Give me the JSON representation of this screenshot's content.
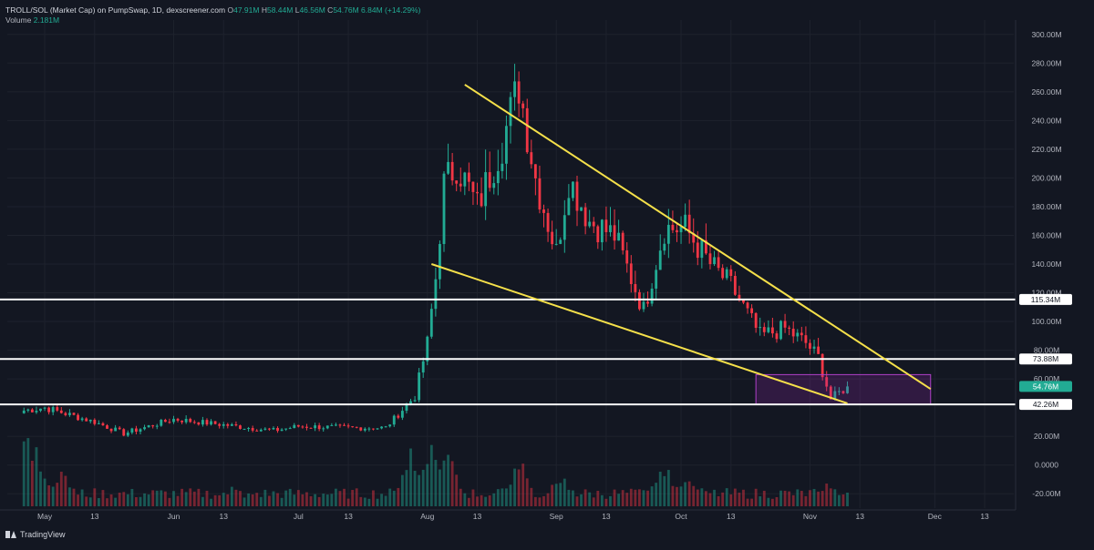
{
  "header": {
    "symbol": "TROLL/SOL (Market Cap) on PumpSwap, 1D, dexscreener.com",
    "open_label": "O",
    "open": "47.91M",
    "high_label": "H",
    "high": "58.44M",
    "low_label": "L",
    "low": "46.56M",
    "close_label": "C",
    "close": "54.76M",
    "change": "6.84M (+14.29%)",
    "volume_label": "Volume",
    "volume": "2.181M"
  },
  "brand": "TradingView",
  "colors": {
    "background": "#131722",
    "up": "#22ab94",
    "down": "#f23645",
    "trendline": "#f5e04a",
    "level": "#ffffff",
    "zone": "#9c27b0",
    "grid": "#1e222d"
  },
  "chart_data": {
    "type": "candlestick",
    "ylim": [
      -30,
      310
    ],
    "y_unit": "M",
    "yticks": [
      "300.00M",
      "280.00M",
      "260.00M",
      "240.00M",
      "220.00M",
      "200.00M",
      "180.00M",
      "160.00M",
      "140.00M",
      "120.00M",
      "100.00M",
      "80.00M",
      "60.00M",
      "20.00M",
      "0.0000",
      "-20.00M"
    ],
    "ytick_values": [
      300,
      280,
      260,
      240,
      220,
      200,
      180,
      160,
      140,
      120,
      100,
      80,
      60,
      20,
      0,
      -20
    ],
    "xticks": [
      {
        "label": "May",
        "x": "2025-05-01"
      },
      {
        "label": "13",
        "x": "2025-05-13"
      },
      {
        "label": "Jun",
        "x": "2025-06-01"
      },
      {
        "label": "13",
        "x": "2025-06-13"
      },
      {
        "label": "Jul",
        "x": "2025-07-01"
      },
      {
        "label": "13",
        "x": "2025-07-13"
      },
      {
        "label": "Aug",
        "x": "2025-08-01"
      },
      {
        "label": "13",
        "x": "2025-08-13"
      },
      {
        "label": "Sep",
        "x": "2025-09-01"
      },
      {
        "label": "13",
        "x": "2025-09-13"
      },
      {
        "label": "Oct",
        "x": "2025-10-01"
      },
      {
        "label": "13",
        "x": "2025-10-13"
      },
      {
        "label": "Nov",
        "x": "2025-11-01"
      },
      {
        "label": "13",
        "x": "2025-11-13"
      },
      {
        "label": "Dec",
        "x": "2025-12-01"
      },
      {
        "label": "13",
        "x": "2025-12-13"
      }
    ],
    "xlim": [
      "2025-04-22",
      "2025-12-20"
    ],
    "levels": [
      {
        "value": 115.34,
        "label": "115.34M"
      },
      {
        "value": 73.88,
        "label": "73.88M"
      },
      {
        "value": 42.26,
        "label": "42.26M"
      }
    ],
    "last_price": {
      "value": 54.76,
      "label": "54.76M"
    },
    "trendlines": [
      {
        "from": {
          "x": "2025-08-10",
          "y": 265
        },
        "to": {
          "x": "2025-11-30",
          "y": 53
        }
      },
      {
        "from": {
          "x": "2025-08-02",
          "y": 140
        },
        "to": {
          "x": "2025-11-10",
          "y": 43
        }
      }
    ],
    "zone": {
      "x_start": "2025-10-19",
      "x_end": "2025-11-30",
      "y_low": 42.26,
      "y_high": 63
    },
    "key_closes": [
      {
        "x": "2025-04-26",
        "close": 38
      },
      {
        "x": "2025-05-01",
        "close": 40
      },
      {
        "x": "2025-05-13",
        "close": 30
      },
      {
        "x": "2025-05-20",
        "close": 22
      },
      {
        "x": "2025-06-01",
        "close": 32
      },
      {
        "x": "2025-06-13",
        "close": 28
      },
      {
        "x": "2025-06-25",
        "close": 24
      },
      {
        "x": "2025-07-01",
        "close": 27
      },
      {
        "x": "2025-07-13",
        "close": 26
      },
      {
        "x": "2025-07-22",
        "close": 26
      },
      {
        "x": "2025-07-29",
        "close": 48
      },
      {
        "x": "2025-08-01",
        "close": 85
      },
      {
        "x": "2025-08-03",
        "close": 130
      },
      {
        "x": "2025-08-05",
        "close": 195
      },
      {
        "x": "2025-08-08",
        "close": 210
      },
      {
        "x": "2025-08-13",
        "close": 180
      },
      {
        "x": "2025-08-19",
        "close": 225
      },
      {
        "x": "2025-08-23",
        "close": 265
      },
      {
        "x": "2025-08-27",
        "close": 200
      },
      {
        "x": "2025-09-01",
        "close": 148
      },
      {
        "x": "2025-09-04",
        "close": 200
      },
      {
        "x": "2025-09-09",
        "close": 170
      },
      {
        "x": "2025-09-15",
        "close": 160
      },
      {
        "x": "2025-09-22",
        "close": 108
      },
      {
        "x": "2025-09-27",
        "close": 165
      },
      {
        "x": "2025-10-02",
        "close": 165
      },
      {
        "x": "2025-10-08",
        "close": 140
      },
      {
        "x": "2025-10-13",
        "close": 125
      },
      {
        "x": "2025-10-20",
        "close": 90
      },
      {
        "x": "2025-10-26",
        "close": 95
      },
      {
        "x": "2025-10-31",
        "close": 85
      },
      {
        "x": "2025-11-03",
        "close": 75
      },
      {
        "x": "2025-11-06",
        "close": 46
      },
      {
        "x": "2025-11-10",
        "close": 54.76
      }
    ],
    "volume_peaks": [
      {
        "x": "2025-04-27",
        "rel": 0.95
      },
      {
        "x": "2025-04-29",
        "rel": 0.7
      },
      {
        "x": "2025-05-05",
        "rel": 0.5
      },
      {
        "x": "2025-06-15",
        "rel": 0.25
      },
      {
        "x": "2025-07-28",
        "rel": 0.7
      },
      {
        "x": "2025-08-02",
        "rel": 0.95
      },
      {
        "x": "2025-08-06",
        "rel": 0.65
      },
      {
        "x": "2025-08-23",
        "rel": 0.6
      },
      {
        "x": "2025-09-02",
        "rel": 0.4
      },
      {
        "x": "2025-09-27",
        "rel": 0.55
      },
      {
        "x": "2025-10-03",
        "rel": 0.45
      },
      {
        "x": "2025-11-05",
        "rel": 0.3
      }
    ]
  }
}
